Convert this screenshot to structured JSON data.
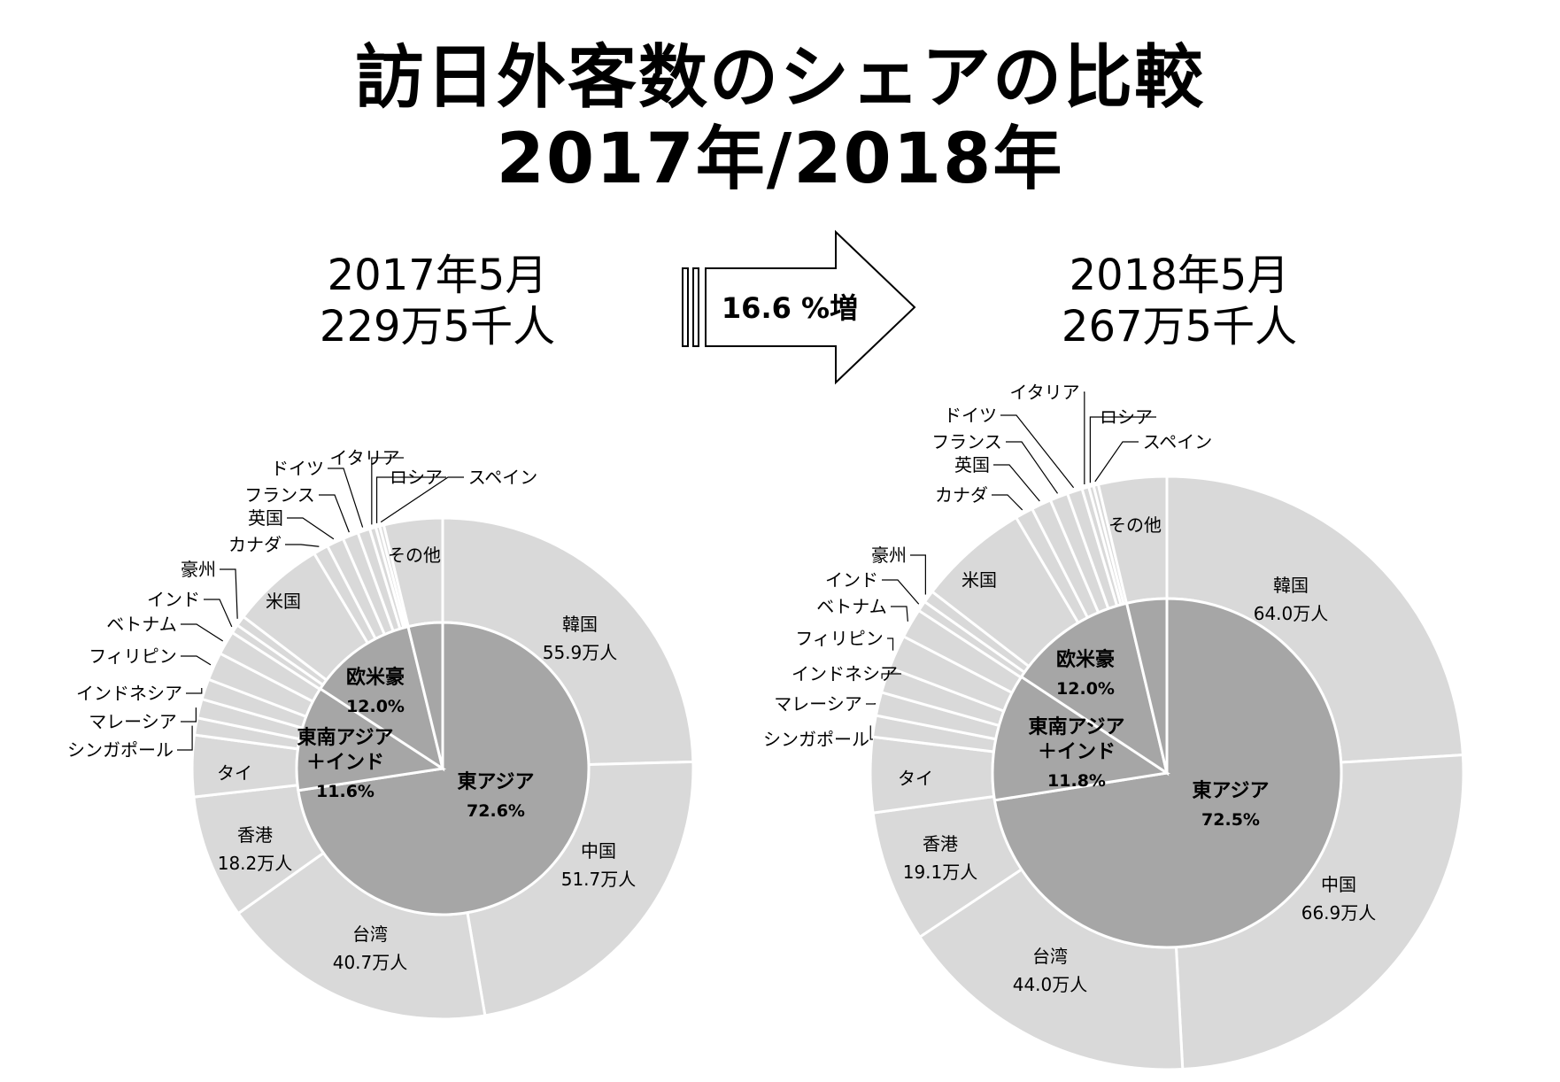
{
  "title": {
    "line1": "訪日外客数のシェアの比較",
    "line2": "2017年/2018年"
  },
  "left_head": {
    "month": "2017年5月",
    "total": "229万5千人"
  },
  "right_head": {
    "month": "2018年5月",
    "total": "267万5千人"
  },
  "arrow": {
    "label": "16.6 %増"
  },
  "colors": {
    "outer": "#d9d9d9",
    "inner": "#a6a6a6",
    "stroke": "#ffffff",
    "leader": "#000000"
  },
  "chart_data": [
    {
      "type": "pie",
      "title": "2017年5月",
      "inner": [
        {
          "name": "東アジア",
          "value": 72.6,
          "label": "72.6%"
        },
        {
          "name": "東南アジア\n＋インド",
          "value": 11.6,
          "label": "11.6%"
        },
        {
          "name": "欧米豪",
          "value": 12.0,
          "label": "12.0%"
        },
        {
          "name": "",
          "value": 3.8,
          "label": ""
        }
      ],
      "outer": [
        {
          "name": "韓国",
          "value": 55.9,
          "label": "55.9万人"
        },
        {
          "name": "中国",
          "value": 51.7,
          "label": "51.7万人"
        },
        {
          "name": "台湾",
          "value": 40.7,
          "label": "40.7万人"
        },
        {
          "name": "香港",
          "value": 18.2,
          "label": "18.2万人"
        },
        {
          "name": "タイ",
          "value": 9.0,
          "label": ""
        },
        {
          "name": "シンガポール",
          "value": 2.5,
          "label": ""
        },
        {
          "name": "マレーシア",
          "value": 2.8,
          "label": ""
        },
        {
          "name": "インドネシア",
          "value": 3.0,
          "label": ""
        },
        {
          "name": "フィリピン",
          "value": 4.1,
          "label": ""
        },
        {
          "name": "ベトナム",
          "value": 3.5,
          "label": ""
        },
        {
          "name": "インド",
          "value": 1.3,
          "label": ""
        },
        {
          "name": "豪州",
          "value": 1.5,
          "label": ""
        },
        {
          "name": "米国",
          "value": 13.8,
          "label": ""
        },
        {
          "name": "カナダ",
          "value": 2.2,
          "label": ""
        },
        {
          "name": "英国",
          "value": 2.5,
          "label": ""
        },
        {
          "name": "フランス",
          "value": 2.3,
          "label": ""
        },
        {
          "name": "ドイツ",
          "value": 1.8,
          "label": ""
        },
        {
          "name": "イタリア",
          "value": 0.9,
          "label": ""
        },
        {
          "name": "ロシア",
          "value": 0.6,
          "label": ""
        },
        {
          "name": "スペイン",
          "value": 0.6,
          "label": ""
        },
        {
          "name": "その他",
          "value": 8.6,
          "label": ""
        }
      ]
    },
    {
      "type": "pie",
      "title": "2018年5月",
      "inner": [
        {
          "name": "東アジア",
          "value": 72.5,
          "label": "72.5%"
        },
        {
          "name": "東南アジア\n＋インド",
          "value": 11.8,
          "label": "11.8%"
        },
        {
          "name": "欧米豪",
          "value": 12.0,
          "label": "12.0%"
        },
        {
          "name": "",
          "value": 3.7,
          "label": ""
        }
      ],
      "outer": [
        {
          "name": "韓国",
          "value": 64.0,
          "label": "64.0万人"
        },
        {
          "name": "中国",
          "value": 66.9,
          "label": "66.9万人"
        },
        {
          "name": "台湾",
          "value": 44.0,
          "label": "44.0万人"
        },
        {
          "name": "香港",
          "value": 19.1,
          "label": "19.1万人"
        },
        {
          "name": "タイ",
          "value": 10.9,
          "label": ""
        },
        {
          "name": "シンガポール",
          "value": 3.1,
          "label": ""
        },
        {
          "name": "マレーシア",
          "value": 3.4,
          "label": ""
        },
        {
          "name": "インドネシア",
          "value": 3.7,
          "label": ""
        },
        {
          "name": "フィリピン",
          "value": 4.9,
          "label": ""
        },
        {
          "name": "ベトナム",
          "value": 4.3,
          "label": ""
        },
        {
          "name": "インド",
          "value": 1.5,
          "label": ""
        },
        {
          "name": "豪州",
          "value": 1.8,
          "label": ""
        },
        {
          "name": "米国",
          "value": 16.1,
          "label": ""
        },
        {
          "name": "カナダ",
          "value": 2.6,
          "label": ""
        },
        {
          "name": "英国",
          "value": 2.9,
          "label": ""
        },
        {
          "name": "フランス",
          "value": 2.6,
          "label": ""
        },
        {
          "name": "ドイツ",
          "value": 2.2,
          "label": ""
        },
        {
          "name": "イタリア",
          "value": 1.0,
          "label": ""
        },
        {
          "name": "ロシア",
          "value": 0.7,
          "label": ""
        },
        {
          "name": "スペイン",
          "value": 0.7,
          "label": ""
        },
        {
          "name": "その他",
          "value": 9.9,
          "label": ""
        }
      ]
    }
  ]
}
